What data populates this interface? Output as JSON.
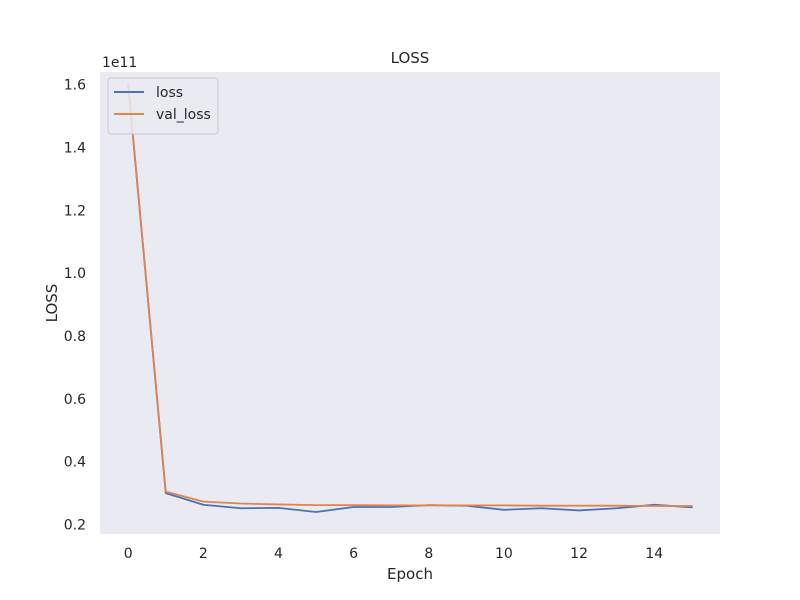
{
  "chart_data": {
    "type": "line",
    "title": "LOSS",
    "xlabel": "Epoch",
    "ylabel": "LOSS",
    "y_offset_label": "1e11",
    "y_scale_factor": 100000000000.0,
    "xlim": [
      -0.75,
      15.75
    ],
    "ylim": [
      0.17,
      1.64
    ],
    "x_ticks": [
      0,
      2,
      4,
      6,
      8,
      10,
      12,
      14
    ],
    "y_ticks": [
      0.2,
      0.4,
      0.6,
      0.8,
      1.0,
      1.2,
      1.4,
      1.6
    ],
    "y_tick_labels": [
      "0.2",
      "0.4",
      "0.6",
      "0.8",
      "1.0",
      "1.2",
      "1.4",
      "1.6"
    ],
    "grid": false,
    "legend_position": "top-left",
    "background_color": "#eaeaf2",
    "x": [
      0,
      1,
      2,
      3,
      4,
      5,
      6,
      7,
      8,
      9,
      10,
      11,
      12,
      13,
      14,
      15
    ],
    "series": [
      {
        "name": "loss",
        "color": "#4c72b0",
        "values": [
          1.6,
          0.3,
          0.263,
          0.252,
          0.253,
          0.24,
          0.256,
          0.256,
          0.262,
          0.26,
          0.247,
          0.252,
          0.245,
          0.252,
          0.263,
          0.255
        ]
      },
      {
        "name": "val_loss",
        "color": "#dd8452",
        "values": [
          1.6,
          0.305,
          0.273,
          0.267,
          0.264,
          0.262,
          0.262,
          0.261,
          0.261,
          0.261,
          0.261,
          0.26,
          0.26,
          0.26,
          0.259,
          0.259
        ]
      }
    ]
  }
}
